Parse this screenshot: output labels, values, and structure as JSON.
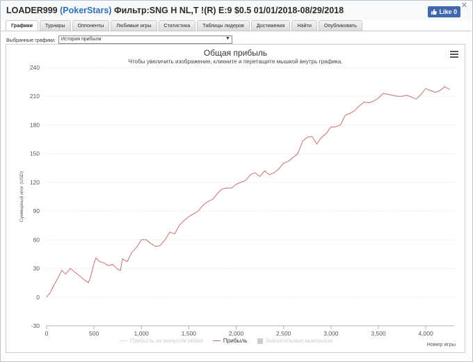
{
  "header": {
    "player": "LOADER999",
    "site": "(PokerStars)",
    "filter": "Фильтр:SNG H NL,T !(R) E:9 $0.5 01/01/2018-08/29/2018",
    "like_label": "Like 0",
    "close_glyph": "✕"
  },
  "tabs": [
    "Графики",
    "Турниры",
    "Оппоненты",
    "Любимые игры",
    "Статистика",
    "Таблицы лидеров",
    "Достижения",
    "Найти",
    "Опубликовать"
  ],
  "selector": {
    "label": "Выбранные графики:",
    "value": "История прибыли"
  },
  "chart_data": {
    "type": "line",
    "title": "Общая прибыль",
    "subtitle": "Чтобы увеличить изображение, кликните и перетащите мышкой внутрь графика.",
    "ylabel": "Суммарный итог (USD)",
    "xlabel": "Номер игры",
    "xlim": [
      0,
      4300
    ],
    "ylim": [
      -30,
      240
    ],
    "x_ticks": [
      0,
      500,
      1000,
      1500,
      2000,
      2500,
      3000,
      3500,
      4000
    ],
    "x_tick_labels": [
      "0",
      "500",
      "1,000",
      "1,500",
      "2,000",
      "2,500",
      "3,000",
      "3,500",
      "4,000"
    ],
    "y_ticks": [
      -30,
      0,
      30,
      60,
      90,
      120,
      150,
      180,
      210,
      240
    ],
    "grid": "horizontal",
    "legend_position": "bottom",
    "series": [
      {
        "name": "Прибыль за минусом рейка",
        "visible": false,
        "color": "#dddddd",
        "x": [],
        "y": []
      },
      {
        "name": "Прибыль",
        "visible": true,
        "color": "#c9706e",
        "x": [
          0,
          40,
          80,
          120,
          160,
          200,
          250,
          300,
          350,
          400,
          440,
          460,
          500,
          520,
          560,
          600,
          650,
          700,
          750,
          780,
          800,
          850,
          900,
          950,
          1000,
          1050,
          1100,
          1150,
          1200,
          1250,
          1300,
          1350,
          1400,
          1450,
          1500,
          1550,
          1600,
          1650,
          1700,
          1750,
          1800,
          1850,
          1900,
          1950,
          2000,
          2050,
          2100,
          2150,
          2200,
          2250,
          2300,
          2350,
          2400,
          2450,
          2500,
          2550,
          2600,
          2650,
          2700,
          2750,
          2800,
          2850,
          2900,
          2950,
          3000,
          3050,
          3100,
          3150,
          3200,
          3250,
          3300,
          3350,
          3400,
          3450,
          3500,
          3550,
          3600,
          3650,
          3700,
          3750,
          3800,
          3850,
          3900,
          3950,
          4000,
          4050,
          4100,
          4150,
          4200,
          4250
        ],
        "y": [
          0,
          5,
          13,
          20,
          28,
          24,
          30,
          26,
          22,
          18,
          15,
          20,
          35,
          41,
          37,
          36,
          33,
          34,
          29,
          28,
          40,
          37,
          47,
          52,
          60,
          60,
          56,
          53,
          54,
          60,
          68,
          66,
          75,
          80,
          84,
          87,
          90,
          96,
          100,
          102,
          108,
          113,
          114,
          114,
          118,
          120,
          122,
          128,
          130,
          126,
          132,
          128,
          130,
          134,
          140,
          142,
          146,
          150,
          163,
          167,
          168,
          160,
          167,
          171,
          178,
          178,
          180,
          190,
          192,
          195,
          200,
          204,
          203,
          205,
          208,
          213,
          212,
          211,
          210,
          210,
          211,
          209,
          207,
          212,
          218,
          216,
          214,
          216,
          220,
          217
        ]
      }
    ],
    "legend_marker": {
      "label": "Значительные выигрыши",
      "visible": false,
      "color": "#cccccc"
    }
  }
}
